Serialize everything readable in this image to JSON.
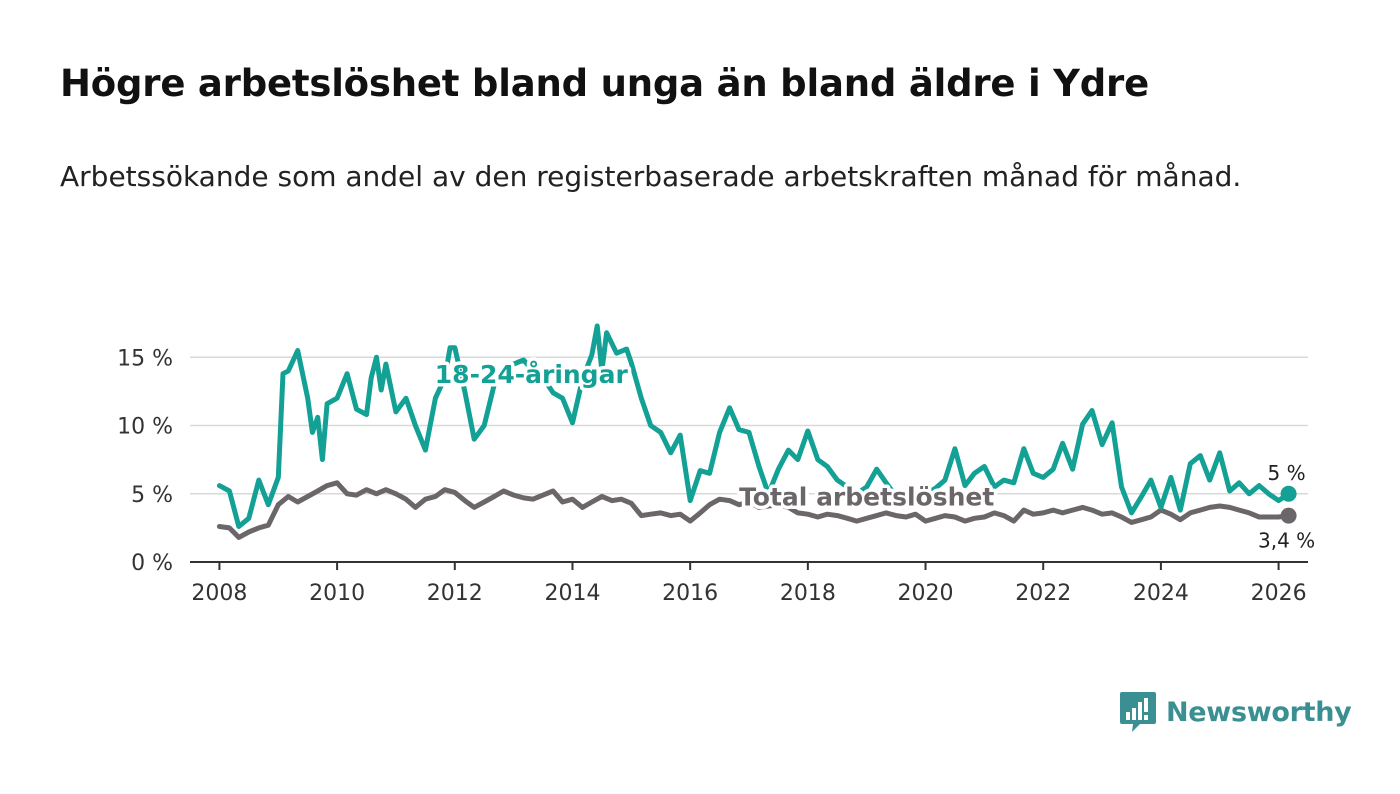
{
  "header": {
    "title": "Högre arbetslöshet bland unga än bland äldre i Ydre",
    "subtitle": "Arbetssökande som andel av den registerbaserade arbetskraften månad för månad."
  },
  "brand": {
    "name": "Newsworthy",
    "color": "#3a8f92"
  },
  "chart_data": {
    "type": "line",
    "title": "Högre arbetslöshet bland unga än bland äldre i Ydre",
    "subtitle": "Arbetssökande som andel av den registerbaserade arbetskraften månad för månad.",
    "xlabel": "",
    "ylabel": "",
    "xlim": [
      2007.5,
      2026.5
    ],
    "ylim": [
      0,
      17
    ],
    "x_ticks": [
      2008,
      2010,
      2012,
      2014,
      2016,
      2018,
      2020,
      2022,
      2024,
      2026
    ],
    "x_tick_labels": [
      "2008",
      "2010",
      "2012",
      "2014",
      "2016",
      "2018",
      "2020",
      "2022",
      "2024",
      "2026"
    ],
    "y_ticks": [
      0,
      5,
      10,
      15
    ],
    "y_tick_labels": [
      "0 %",
      "5 %",
      "10 %",
      "15 %"
    ],
    "grid": true,
    "series": [
      {
        "name": "18-24-åringar",
        "color": "#13a095",
        "end_label": "5 %",
        "x": [
          2008.0,
          2008.17,
          2008.33,
          2008.5,
          2008.67,
          2008.83,
          2009.0,
          2009.08,
          2009.17,
          2009.33,
          2009.5,
          2009.58,
          2009.67,
          2009.75,
          2009.83,
          2010.0,
          2010.17,
          2010.33,
          2010.5,
          2010.58,
          2010.67,
          2010.75,
          2010.83,
          2011.0,
          2011.17,
          2011.33,
          2011.5,
          2011.67,
          2011.83,
          2011.92,
          2012.0,
          2012.17,
          2012.33,
          2012.5,
          2012.67,
          2012.83,
          2013.0,
          2013.17,
          2013.33,
          2013.5,
          2013.67,
          2013.83,
          2014.0,
          2014.17,
          2014.33,
          2014.42,
          2014.5,
          2014.58,
          2014.75,
          2014.92,
          2015.0,
          2015.17,
          2015.33,
          2015.5,
          2015.67,
          2015.83,
          2016.0,
          2016.17,
          2016.33,
          2016.5,
          2016.67,
          2016.83,
          2017.0,
          2017.17,
          2017.33,
          2017.5,
          2017.67,
          2017.83,
          2018.0,
          2018.17,
          2018.33,
          2018.5,
          2018.67,
          2018.83,
          2019.0,
          2019.17,
          2019.33,
          2019.5,
          2019.67,
          2019.83,
          2020.0,
          2020.17,
          2020.33,
          2020.5,
          2020.67,
          2020.83,
          2021.0,
          2021.17,
          2021.33,
          2021.5,
          2021.67,
          2021.83,
          2022.0,
          2022.17,
          2022.33,
          2022.5,
          2022.67,
          2022.83,
          2023.0,
          2023.17,
          2023.33,
          2023.5,
          2023.67,
          2023.83,
          2024.0,
          2024.17,
          2024.33,
          2024.5,
          2024.67,
          2024.83,
          2025.0,
          2025.17,
          2025.33,
          2025.5,
          2025.67,
          2025.83,
          2026.0,
          2026.17
        ],
        "values": [
          5.6,
          5.2,
          2.6,
          3.2,
          6.0,
          4.2,
          6.2,
          13.8,
          14.0,
          15.5,
          12.0,
          9.5,
          10.6,
          7.5,
          11.6,
          12.0,
          13.8,
          11.2,
          10.8,
          13.5,
          15.0,
          12.6,
          14.5,
          11.0,
          12.0,
          10.0,
          8.2,
          12.0,
          13.5,
          15.7,
          15.7,
          12.5,
          9.0,
          10.0,
          13.0,
          13.8,
          14.5,
          14.8,
          14.0,
          13.5,
          12.4,
          12.0,
          10.2,
          13.4,
          15.2,
          17.3,
          14.0,
          16.8,
          15.3,
          15.6,
          14.6,
          12.0,
          10.0,
          9.5,
          8.0,
          9.3,
          4.5,
          6.7,
          6.5,
          9.5,
          11.3,
          9.7,
          9.5,
          7.0,
          5.0,
          6.8,
          8.2,
          7.5,
          9.6,
          7.5,
          7.0,
          6.0,
          5.5,
          5.0,
          5.5,
          6.8,
          5.8,
          4.8,
          5.0,
          4.9,
          5.0,
          5.4,
          6.0,
          8.3,
          5.6,
          6.5,
          7.0,
          5.5,
          6.0,
          5.8,
          8.3,
          6.5,
          6.2,
          6.8,
          8.7,
          6.8,
          10.1,
          11.1,
          8.6,
          10.2,
          5.5,
          3.6,
          4.8,
          6.0,
          4.0,
          6.2,
          3.8,
          7.2,
          7.8,
          6.0,
          8.0,
          5.2,
          5.8,
          5.0,
          5.6,
          5.0,
          4.5,
          5.0
        ]
      },
      {
        "name": "Total arbetslöshet",
        "color": "#6b6669",
        "end_label": "3,4 %",
        "x": [
          2008.0,
          2008.17,
          2008.33,
          2008.5,
          2008.67,
          2008.83,
          2009.0,
          2009.17,
          2009.33,
          2009.5,
          2009.67,
          2009.83,
          2010.0,
          2010.17,
          2010.33,
          2010.5,
          2010.67,
          2010.83,
          2011.0,
          2011.17,
          2011.33,
          2011.5,
          2011.67,
          2011.83,
          2012.0,
          2012.17,
          2012.33,
          2012.5,
          2012.67,
          2012.83,
          2013.0,
          2013.17,
          2013.33,
          2013.5,
          2013.67,
          2013.83,
          2014.0,
          2014.17,
          2014.33,
          2014.5,
          2014.67,
          2014.83,
          2015.0,
          2015.17,
          2015.33,
          2015.5,
          2015.67,
          2015.83,
          2016.0,
          2016.17,
          2016.33,
          2016.5,
          2016.67,
          2016.83,
          2017.0,
          2017.17,
          2017.33,
          2017.5,
          2017.67,
          2017.83,
          2018.0,
          2018.17,
          2018.33,
          2018.5,
          2018.67,
          2018.83,
          2019.0,
          2019.17,
          2019.33,
          2019.5,
          2019.67,
          2019.83,
          2020.0,
          2020.17,
          2020.33,
          2020.5,
          2020.67,
          2020.83,
          2021.0,
          2021.17,
          2021.33,
          2021.5,
          2021.67,
          2021.83,
          2022.0,
          2022.17,
          2022.33,
          2022.5,
          2022.67,
          2022.83,
          2023.0,
          2023.17,
          2023.33,
          2023.5,
          2023.67,
          2023.83,
          2024.0,
          2024.17,
          2024.33,
          2024.5,
          2024.67,
          2024.83,
          2025.0,
          2025.17,
          2025.33,
          2025.5,
          2025.67,
          2025.83,
          2026.0,
          2026.17
        ],
        "values": [
          2.6,
          2.5,
          1.8,
          2.2,
          2.5,
          2.7,
          4.2,
          4.8,
          4.4,
          4.8,
          5.2,
          5.6,
          5.8,
          5.0,
          4.9,
          5.3,
          5.0,
          5.3,
          5.0,
          4.6,
          4.0,
          4.6,
          4.8,
          5.3,
          5.1,
          4.5,
          4.0,
          4.4,
          4.8,
          5.2,
          4.9,
          4.7,
          4.6,
          4.9,
          5.2,
          4.4,
          4.6,
          4.0,
          4.4,
          4.8,
          4.5,
          4.6,
          4.3,
          3.4,
          3.5,
          3.6,
          3.4,
          3.5,
          3.0,
          3.6,
          4.2,
          4.6,
          4.5,
          4.2,
          4.4,
          4.0,
          4.1,
          4.2,
          4.0,
          3.6,
          3.5,
          3.3,
          3.5,
          3.4,
          3.2,
          3.0,
          3.2,
          3.4,
          3.6,
          3.4,
          3.3,
          3.5,
          3.0,
          3.2,
          3.4,
          3.3,
          3.0,
          3.2,
          3.3,
          3.6,
          3.4,
          3.0,
          3.8,
          3.5,
          3.6,
          3.8,
          3.6,
          3.8,
          4.0,
          3.8,
          3.5,
          3.6,
          3.3,
          2.9,
          3.1,
          3.3,
          3.8,
          3.5,
          3.1,
          3.6,
          3.8,
          4.0,
          4.1,
          4.0,
          3.8,
          3.6,
          3.3,
          3.3,
          3.3,
          3.4
        ]
      }
    ],
    "annotations": [
      {
        "text": "18-24-åringar",
        "series": "18-24-åringar"
      },
      {
        "text": "Total arbetslöshet",
        "series": "Total arbetslöshet"
      }
    ]
  }
}
